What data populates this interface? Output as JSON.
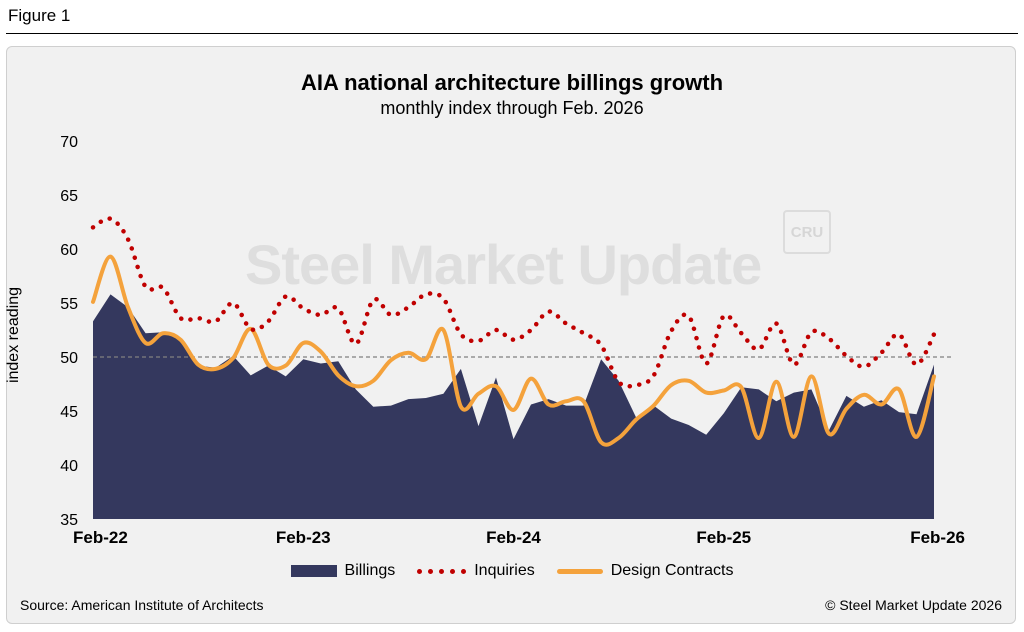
{
  "figure_label": "Figure 1",
  "watermark": {
    "text": "Steel Market Update",
    "badge": "CRU"
  },
  "source": "Source: American Institute of Architects",
  "copyright": "© Steel Market Update 2026",
  "colors": {
    "billings": "#34385e",
    "inquiries": "#c00000",
    "design": "#f4a23c",
    "reference": "#808080"
  },
  "chart_data": {
    "type": "area",
    "title": "AIA national architecture billings growth",
    "subtitle": "monthly index through Feb. 2026",
    "xlabel": "",
    "ylabel": "index reading",
    "ylim": [
      35,
      70
    ],
    "yticks": [
      35,
      40,
      45,
      50,
      55,
      60,
      65,
      70
    ],
    "x": [
      "Feb-22",
      "Mar-22",
      "Apr-22",
      "May-22",
      "Jun-22",
      "Jul-22",
      "Aug-22",
      "Sep-22",
      "Oct-22",
      "Nov-22",
      "Dec-22",
      "Jan-23",
      "Feb-23",
      "Mar-23",
      "Apr-23",
      "May-23",
      "Jun-23",
      "Jul-23",
      "Aug-23",
      "Sep-23",
      "Oct-23",
      "Nov-23",
      "Dec-23",
      "Jan-24",
      "Feb-24",
      "Mar-24",
      "Apr-24",
      "May-24",
      "Jun-24",
      "Jul-24",
      "Aug-24",
      "Sep-24",
      "Oct-24",
      "Nov-24",
      "Dec-24",
      "Jan-25",
      "Feb-25",
      "Mar-25",
      "Apr-25",
      "May-25",
      "Jun-25",
      "Jul-25",
      "Aug-25",
      "Sep-25",
      "Oct-25",
      "Nov-25",
      "Dec-25",
      "Jan-26",
      "Feb-26"
    ],
    "x_tick_labels": [
      "Feb-22",
      "Feb-23",
      "Feb-24",
      "Feb-25",
      "Feb-26"
    ],
    "reference_line": 50,
    "series": [
      {
        "name": "Billings",
        "kind": "area",
        "values": [
          53.3,
          55.8,
          54.6,
          52.2,
          52.3,
          51.7,
          49.2,
          49.0,
          50.1,
          48.3,
          49.2,
          48.2,
          49.8,
          49.4,
          49.6,
          47.0,
          45.4,
          45.5,
          46.1,
          46.2,
          46.6,
          48.9,
          43.6,
          48.1,
          42.4,
          45.6,
          46.1,
          45.5,
          45.5,
          49.8,
          47.8,
          44.4,
          45.5,
          44.3,
          43.7,
          42.8,
          44.8,
          47.2,
          47.0,
          45.9,
          46.7,
          47.0,
          43.2,
          46.4,
          45.4,
          46.0,
          44.9,
          44.7,
          49.3
        ]
      },
      {
        "name": "Inquiries",
        "kind": "dotted-line",
        "values": [
          62.0,
          62.8,
          60.9,
          56.5,
          56.4,
          53.6,
          53.6,
          53.3,
          55.0,
          52.6,
          53.3,
          55.6,
          54.5,
          53.9,
          54.5,
          51.2,
          55.3,
          53.9,
          54.6,
          55.8,
          55.4,
          52.1,
          51.5,
          52.5,
          51.6,
          52.5,
          54.2,
          53.1,
          52.2,
          51.1,
          47.7,
          47.4,
          48.3,
          52.4,
          53.8,
          49.4,
          53.8,
          52.2,
          50.7,
          53.1,
          49.3,
          52.3,
          51.7,
          50.1,
          49.1,
          50.4,
          52.1,
          49.3,
          52.1
        ]
      },
      {
        "name": "Design Contracts",
        "kind": "line",
        "values": [
          55.1,
          59.3,
          54.6,
          51.3,
          52.2,
          51.6,
          49.3,
          48.9,
          49.9,
          52.6,
          49.3,
          49.2,
          51.3,
          50.5,
          48.3,
          47.3,
          47.8,
          49.7,
          50.4,
          49.8,
          52.5,
          45.4,
          46.6,
          47.3,
          45.1,
          48.0,
          45.6,
          45.9,
          45.9,
          42.1,
          42.5,
          44.2,
          45.5,
          47.4,
          47.8,
          46.7,
          46.9,
          47.2,
          42.5,
          47.7,
          42.6,
          48.2,
          42.9,
          45.2,
          46.5,
          45.6,
          47.0,
          42.6,
          48.2
        ]
      }
    ],
    "legend_position": "bottom-center",
    "grid": false
  }
}
